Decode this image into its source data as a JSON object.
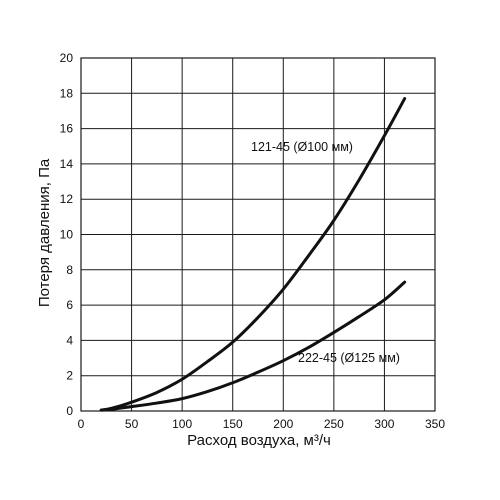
{
  "chart_data": {
    "type": "line",
    "title": "",
    "xlabel": "Расход воздуха, м³/ч",
    "ylabel": "Потеря давления, Па",
    "xlim": [
      0,
      350
    ],
    "ylim": [
      0,
      20
    ],
    "x_ticks": [
      0,
      50,
      100,
      150,
      200,
      250,
      300,
      350
    ],
    "y_ticks": [
      0,
      2,
      4,
      6,
      8,
      10,
      12,
      14,
      16,
      18,
      20
    ],
    "grid": true,
    "legend": "none",
    "series": [
      {
        "name": "121-45 (Ø100 мм)",
        "color": "#111111",
        "x": [
          20,
          30,
          50,
          75,
          100,
          125,
          150,
          175,
          200,
          225,
          250,
          275,
          300,
          320
        ],
        "y": [
          0.05,
          0.15,
          0.5,
          1.05,
          1.8,
          2.8,
          3.9,
          5.3,
          6.9,
          8.8,
          10.8,
          13.1,
          15.6,
          17.7
        ]
      },
      {
        "name": "222-45 (Ø125 мм)",
        "color": "#111111",
        "x": [
          20,
          30,
          50,
          75,
          100,
          125,
          150,
          175,
          200,
          225,
          250,
          275,
          300,
          320
        ],
        "y": [
          0.05,
          0.1,
          0.25,
          0.45,
          0.7,
          1.1,
          1.6,
          2.2,
          2.85,
          3.6,
          4.45,
          5.35,
          6.3,
          7.3
        ]
      }
    ]
  }
}
